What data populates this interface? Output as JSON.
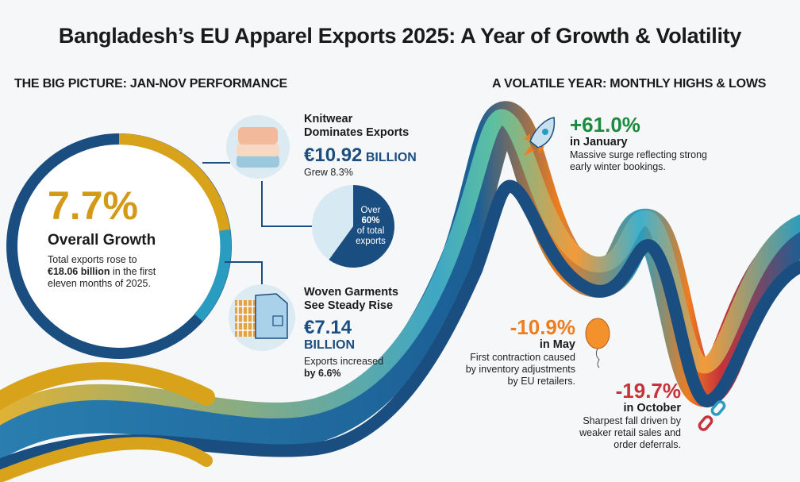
{
  "title": "Bangladesh’s EU Apparel Exports 2025: A Year of Growth & Volatility",
  "left_section": {
    "heading": "THE BIG PICTURE: JAN-NOV PERFORMANCE",
    "overall": {
      "value": "7.7%",
      "label": "Overall Growth",
      "text_pre": "Total exports rose to",
      "text_bold": "€18.06 billion",
      "text_post": "in the first eleven months of 2025."
    },
    "knitwear": {
      "title_1": "Knitwear",
      "title_2": "Dominates Exports",
      "amount": "€10.92",
      "unit": "BILLION",
      "growth": "Grew 8.3%",
      "share_text_1": "Over",
      "share_value": "60%",
      "share_text_2": "of total",
      "share_text_3": "exports",
      "share_fraction": 0.6
    },
    "woven": {
      "title_1": "Woven Garments",
      "title_2": "See Steady Rise",
      "amount": "€7.14",
      "unit": "BILLION",
      "growth_pre": "Exports increased",
      "growth_bold": "by 6.6%"
    }
  },
  "right_section": {
    "heading": "A VOLATILE YEAR: MONTHLY HIGHS & LOWS",
    "january": {
      "value": "+61.0%",
      "month": "in January",
      "text_1": "Massive surge reflecting strong",
      "text_2": "early winter bookings.",
      "icon": "rocket-icon"
    },
    "may": {
      "value": "-10.9%",
      "month": "in May",
      "text_1": "First contraction caused",
      "text_2": "by inventory adjustments",
      "text_3": "by EU retailers.",
      "icon": "balloon-icon"
    },
    "october": {
      "value": "-19.7%",
      "month": "in October",
      "text_1": "Sharpest fall driven by",
      "text_2": "weaker retail sales and",
      "text_3": "order deferrals.",
      "icon": "broken-chain-icon"
    }
  },
  "colors": {
    "gold": "#d9a21b",
    "navy": "#1b4e80",
    "teal": "#2a9cbf",
    "green": "#1e8a3e",
    "orange": "#ee7d1f",
    "red": "#c8323a"
  }
}
